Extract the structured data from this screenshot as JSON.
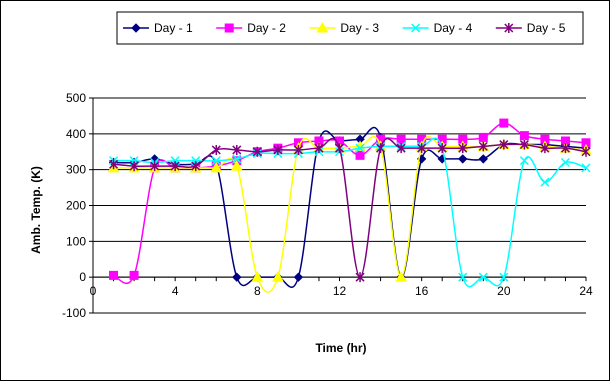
{
  "chart_data": {
    "type": "line",
    "title": "",
    "xlabel": "Time (hr)",
    "ylabel": "Amb. Temp. (K)",
    "xlim": [
      0,
      24
    ],
    "ylim": [
      -100,
      500
    ],
    "x_ticks": [
      0,
      4,
      8,
      12,
      16,
      20,
      24
    ],
    "x_tick_labels": [
      "0",
      "4",
      "8",
      "12",
      "16",
      "20",
      "24"
    ],
    "y_ticks": [
      -100,
      0,
      100,
      200,
      300,
      400,
      500
    ],
    "y_tick_labels": [
      "-100",
      "0",
      "100",
      "200",
      "300",
      "400",
      "500"
    ],
    "grid": "horizontal",
    "legend_position": "top",
    "x": [
      1,
      2,
      3,
      4,
      5,
      6,
      7,
      8,
      9,
      10,
      11,
      12,
      13,
      14,
      15,
      16,
      17,
      18,
      19,
      20,
      21,
      22,
      23,
      24
    ],
    "series": [
      {
        "name": "Day - 1",
        "color": "#000080",
        "marker": "diamond",
        "values": [
          320,
          320,
          330,
          315,
          315,
          315,
          0,
          0,
          0,
          0,
          380,
          380,
          385,
          390,
          0,
          330,
          330,
          330,
          330,
          370,
          370,
          370,
          365,
          360
        ]
      },
      {
        "name": "Day - 2",
        "color": "#ff00ff",
        "marker": "square",
        "values": [
          5,
          5,
          305,
          305,
          305,
          310,
          325,
          350,
          360,
          375,
          380,
          380,
          340,
          385,
          385,
          385,
          385,
          385,
          390,
          430,
          395,
          385,
          380,
          375
        ]
      },
      {
        "name": "Day - 3",
        "color": "#ffff00",
        "marker": "triangle",
        "values": [
          305,
          305,
          305,
          305,
          305,
          305,
          310,
          0,
          0,
          360,
          360,
          360,
          365,
          365,
          0,
          365,
          365,
          365,
          365,
          370,
          370,
          365,
          360,
          355
        ]
      },
      {
        "name": "Day - 4",
        "color": "#00ffff",
        "marker": "x",
        "values": [
          325,
          325,
          320,
          325,
          325,
          325,
          330,
          345,
          345,
          345,
          350,
          350,
          360,
          365,
          365,
          365,
          360,
          0,
          0,
          0,
          325,
          265,
          320,
          305
        ]
      },
      {
        "name": "Day - 5",
        "color": "#800080",
        "marker": "star",
        "values": [
          315,
          310,
          310,
          310,
          310,
          355,
          355,
          350,
          355,
          355,
          360,
          360,
          0,
          360,
          360,
          360,
          360,
          360,
          365,
          370,
          370,
          360,
          360,
          350
        ]
      }
    ]
  }
}
